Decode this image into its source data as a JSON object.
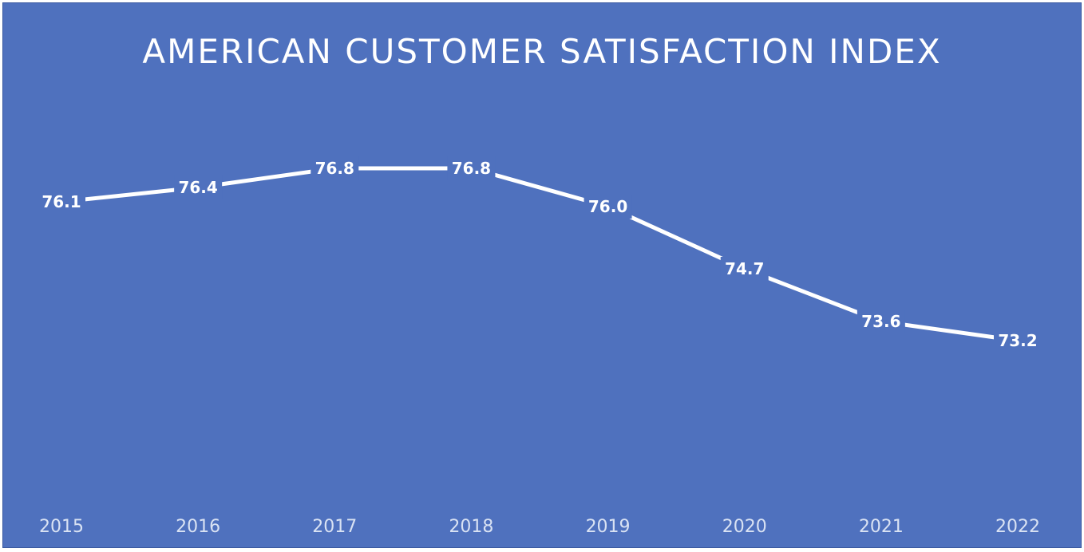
{
  "chart_data": {
    "type": "line",
    "title": "AMERICAN CUSTOMER SATISFACTION INDEX",
    "categories": [
      "2015",
      "2016",
      "2017",
      "2018",
      "2019",
      "2020",
      "2021",
      "2022"
    ],
    "values": [
      76.1,
      76.4,
      76.8,
      76.8,
      76.0,
      74.7,
      73.6,
      73.2
    ],
    "data_labels": [
      "76.1",
      "76.4",
      "76.8",
      "76.8",
      "76.0",
      "74.7",
      "73.6",
      "73.2"
    ],
    "xlabel": "",
    "ylabel": "",
    "ylim": [
      71.5,
      77.5
    ],
    "drop_lines": true,
    "legend": "none",
    "grid": false,
    "colors": {
      "background": "#4f71be",
      "line": "#ffffff",
      "drop_line": "#c9d5ee",
      "tick_label": "#d9e2f3"
    }
  }
}
